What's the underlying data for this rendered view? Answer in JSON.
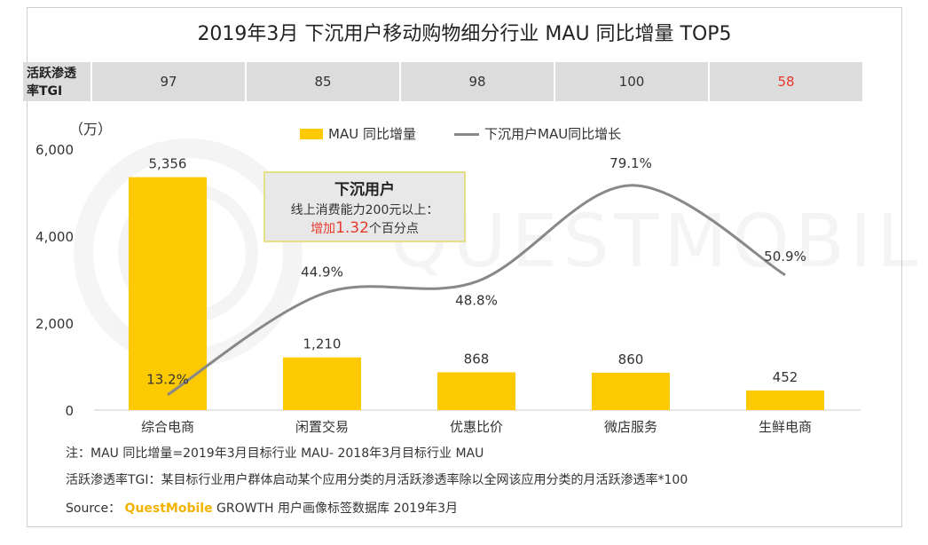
{
  "title": "2019年3月 下沉用户移动购物细分行业 MAU 同比增量 TOP5",
  "tgi": {
    "label_line1": "活跃渗透",
    "label_line2": "率TGI",
    "values": [
      "97",
      "85",
      "98",
      "100",
      "58"
    ],
    "highlight_color": "#e8392d"
  },
  "legend": {
    "bar": "MAU 同比增量",
    "line": "下沉用户MAU同比增长"
  },
  "callout": {
    "title": "下沉用户",
    "line1": "线上消费能力200元以上：",
    "prefix": "增加",
    "number": "1.32",
    "suffix": "个百分点"
  },
  "watermark": "QUESTMOBILE",
  "chart_data": {
    "type": "bar",
    "title": "2019年3月 下沉用户移动购物细分行业 MAU 同比增量 TOP5",
    "ylabel": "（万）",
    "ylim": [
      0,
      6000
    ],
    "yticks": [
      "6,000",
      "4,000",
      "2,000",
      "0"
    ],
    "categories": [
      "综合电商",
      "闲置交易",
      "优惠比价",
      "微店服务",
      "生鲜电商"
    ],
    "series": [
      {
        "name": "MAU 同比增量",
        "kind": "bar",
        "color": "#fdc900",
        "values": [
          5356,
          1210,
          868,
          860,
          452
        ],
        "labels": [
          "5,356",
          "1,210",
          "868",
          "860",
          "452"
        ]
      },
      {
        "name": "下沉用户MAU同比增长",
        "kind": "line",
        "color": "#888888",
        "values": [
          13.2,
          44.9,
          48.8,
          79.1,
          50.9
        ],
        "labels": [
          "13.2%",
          "44.9%",
          "48.8%",
          "79.1%",
          "50.9%"
        ]
      }
    ]
  },
  "footnotes": {
    "note1": "注：MAU 同比增量=2019年3月目标行业 MAU- 2018年3月目标行业 MAU",
    "note2": "活跃渗透率TGI：某目标行业用户群体启动某个应用分类的月活跃渗透率除以全网该应用分类的月活跃渗透率*100",
    "source_prefix": "Source：",
    "source_brand": "QuestMobile",
    "source_rest": " GROWTH 用户画像标签数据库 2019年3月"
  }
}
